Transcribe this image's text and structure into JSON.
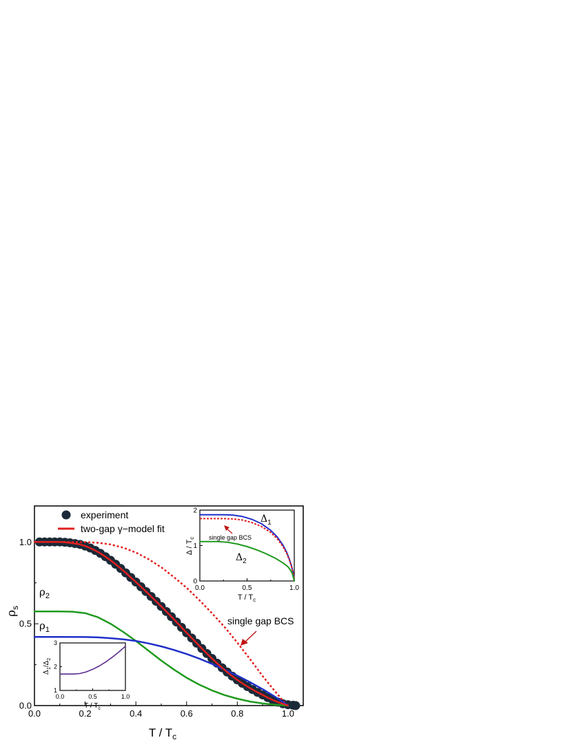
{
  "chart_data": [
    {
      "type": "line",
      "xlabel": "T / T",
      "xlabel_sub": "c",
      "ylabel": "ρ",
      "ylabel_sub": "s",
      "xlim": [
        0.0,
        1.06
      ],
      "ylim": [
        0.0,
        1.22
      ],
      "xticks": [
        "0.0",
        "0.2",
        "0.4",
        "0.6",
        "0.8",
        "1.0"
      ],
      "yticks": [
        "0.0",
        "0.5",
        "1.0"
      ],
      "legend": {
        "placement": "top-left",
        "items": [
          "experiment",
          "two-gap γ−model fit"
        ]
      },
      "series": [
        {
          "name": "experiment",
          "style": "markers",
          "color": "#1b2a38",
          "points": [
            [
              0.02,
              1.0
            ],
            [
              0.04,
              1.0
            ],
            [
              0.06,
              1.0
            ],
            [
              0.08,
              1.0
            ],
            [
              0.1,
              1.0
            ],
            [
              0.12,
              0.998
            ],
            [
              0.14,
              0.995
            ],
            [
              0.16,
              0.99
            ],
            [
              0.18,
              0.985
            ],
            [
              0.2,
              0.975
            ],
            [
              0.22,
              0.963
            ],
            [
              0.24,
              0.948
            ],
            [
              0.26,
              0.93
            ],
            [
              0.28,
              0.91
            ],
            [
              0.3,
              0.888
            ],
            [
              0.32,
              0.864
            ],
            [
              0.34,
              0.838
            ],
            [
              0.36,
              0.811
            ],
            [
              0.38,
              0.783
            ],
            [
              0.4,
              0.755
            ],
            [
              0.42,
              0.726
            ],
            [
              0.44,
              0.697
            ],
            [
              0.46,
              0.667
            ],
            [
              0.48,
              0.637
            ],
            [
              0.5,
              0.606
            ],
            [
              0.52,
              0.575
            ],
            [
              0.54,
              0.543
            ],
            [
              0.56,
              0.511
            ],
            [
              0.58,
              0.478
            ],
            [
              0.6,
              0.445
            ],
            [
              0.62,
              0.413
            ],
            [
              0.64,
              0.381
            ],
            [
              0.66,
              0.349
            ],
            [
              0.68,
              0.318
            ],
            [
              0.7,
              0.288
            ],
            [
              0.72,
              0.259
            ],
            [
              0.74,
              0.231
            ],
            [
              0.76,
              0.205
            ],
            [
              0.78,
              0.18
            ],
            [
              0.8,
              0.157
            ],
            [
              0.82,
              0.136
            ],
            [
              0.84,
              0.116
            ],
            [
              0.86,
              0.098
            ],
            [
              0.88,
              0.081
            ],
            [
              0.9,
              0.065
            ],
            [
              0.92,
              0.049
            ],
            [
              0.94,
              0.034
            ],
            [
              0.96,
              0.021
            ],
            [
              0.98,
              0.011
            ],
            [
              1.0,
              0.005
            ],
            [
              1.02,
              0.002
            ],
            [
              1.03,
              0.0
            ]
          ]
        },
        {
          "name": "two-gap γ−model fit",
          "style": "solid",
          "color": "#e21f1f",
          "points": [
            [
              0.0,
              1.0
            ],
            [
              0.05,
              1.0
            ],
            [
              0.1,
              1.0
            ],
            [
              0.12,
              0.998
            ],
            [
              0.14,
              0.995
            ],
            [
              0.16,
              0.99
            ],
            [
              0.18,
              0.985
            ],
            [
              0.2,
              0.975
            ],
            [
              0.22,
              0.963
            ],
            [
              0.24,
              0.948
            ],
            [
              0.26,
              0.93
            ],
            [
              0.28,
              0.91
            ],
            [
              0.3,
              0.888
            ],
            [
              0.32,
              0.864
            ],
            [
              0.34,
              0.838
            ],
            [
              0.36,
              0.811
            ],
            [
              0.38,
              0.783
            ],
            [
              0.4,
              0.755
            ],
            [
              0.42,
              0.726
            ],
            [
              0.44,
              0.697
            ],
            [
              0.46,
              0.667
            ],
            [
              0.48,
              0.637
            ],
            [
              0.5,
              0.606
            ],
            [
              0.52,
              0.575
            ],
            [
              0.54,
              0.543
            ],
            [
              0.56,
              0.511
            ],
            [
              0.58,
              0.478
            ],
            [
              0.6,
              0.445
            ],
            [
              0.62,
              0.413
            ],
            [
              0.64,
              0.381
            ],
            [
              0.66,
              0.349
            ],
            [
              0.68,
              0.318
            ],
            [
              0.7,
              0.288
            ],
            [
              0.72,
              0.259
            ],
            [
              0.74,
              0.231
            ],
            [
              0.76,
              0.205
            ],
            [
              0.78,
              0.18
            ],
            [
              0.8,
              0.157
            ],
            [
              0.82,
              0.136
            ],
            [
              0.84,
              0.116
            ],
            [
              0.86,
              0.098
            ],
            [
              0.88,
              0.081
            ],
            [
              0.9,
              0.065
            ],
            [
              0.92,
              0.049
            ],
            [
              0.94,
              0.034
            ],
            [
              0.96,
              0.021
            ],
            [
              0.98,
              0.011
            ],
            [
              1.0,
              0.0
            ]
          ]
        },
        {
          "name": "single gap BCS",
          "style": "dotted",
          "color": "#e21f1f",
          "points": [
            [
              0.0,
              1.0
            ],
            [
              0.2,
              0.999
            ],
            [
              0.25,
              0.995
            ],
            [
              0.3,
              0.985
            ],
            [
              0.35,
              0.965
            ],
            [
              0.4,
              0.935
            ],
            [
              0.45,
              0.895
            ],
            [
              0.5,
              0.845
            ],
            [
              0.55,
              0.785
            ],
            [
              0.6,
              0.72
            ],
            [
              0.65,
              0.645
            ],
            [
              0.7,
              0.565
            ],
            [
              0.75,
              0.48
            ],
            [
              0.8,
              0.385
            ],
            [
              0.85,
              0.285
            ],
            [
              0.9,
              0.18
            ],
            [
              0.95,
              0.085
            ],
            [
              0.98,
              0.03
            ],
            [
              1.0,
              0.0
            ]
          ]
        },
        {
          "name": "ρ2",
          "style": "solid",
          "color": "#1f9a1f",
          "points": [
            [
              0.0,
              0.575
            ],
            [
              0.05,
              0.575
            ],
            [
              0.1,
              0.575
            ],
            [
              0.15,
              0.574
            ],
            [
              0.2,
              0.565
            ],
            [
              0.25,
              0.54
            ],
            [
              0.3,
              0.5
            ],
            [
              0.35,
              0.45
            ],
            [
              0.4,
              0.395
            ],
            [
              0.45,
              0.335
            ],
            [
              0.5,
              0.275
            ],
            [
              0.55,
              0.22
            ],
            [
              0.6,
              0.17
            ],
            [
              0.65,
              0.128
            ],
            [
              0.7,
              0.093
            ],
            [
              0.75,
              0.064
            ],
            [
              0.8,
              0.042
            ],
            [
              0.85,
              0.025
            ],
            [
              0.9,
              0.013
            ],
            [
              0.95,
              0.005
            ],
            [
              1.0,
              0.0
            ]
          ]
        },
        {
          "name": "ρ1",
          "style": "solid",
          "color": "#1f2fc8",
          "points": [
            [
              0.0,
              0.42
            ],
            [
              0.1,
              0.42
            ],
            [
              0.2,
              0.419
            ],
            [
              0.25,
              0.417
            ],
            [
              0.3,
              0.412
            ],
            [
              0.35,
              0.405
            ],
            [
              0.4,
              0.395
            ],
            [
              0.45,
              0.38
            ],
            [
              0.5,
              0.362
            ],
            [
              0.55,
              0.34
            ],
            [
              0.6,
              0.315
            ],
            [
              0.65,
              0.287
            ],
            [
              0.7,
              0.255
            ],
            [
              0.75,
              0.22
            ],
            [
              0.8,
              0.183
            ],
            [
              0.85,
              0.143
            ],
            [
              0.9,
              0.1
            ],
            [
              0.95,
              0.053
            ],
            [
              0.98,
              0.022
            ],
            [
              1.0,
              0.0
            ]
          ]
        }
      ],
      "annotations": {
        "rho2": "ρ",
        "rho2_sub": "2",
        "rho1": "ρ",
        "rho1_sub": "1",
        "bcs": "single gap BCS"
      }
    },
    {
      "type": "line",
      "inset": "top-right",
      "xlabel": "T / T",
      "xlabel_sub": "c",
      "ylabel": "Δ / T",
      "ylabel_sub": "c",
      "xlim": [
        0.0,
        1.0
      ],
      "ylim": [
        0.0,
        2.0
      ],
      "xticks": [
        "0.0",
        "0.5",
        "1.0"
      ],
      "yticks": [
        "0",
        "1",
        "2"
      ],
      "series": [
        {
          "name": "Δ1",
          "style": "solid",
          "color": "#1f2fc8",
          "points": [
            [
              0.0,
              1.87
            ],
            [
              0.25,
              1.87
            ],
            [
              0.35,
              1.86
            ],
            [
              0.45,
              1.82
            ],
            [
              0.55,
              1.74
            ],
            [
              0.65,
              1.62
            ],
            [
              0.75,
              1.43
            ],
            [
              0.82,
              1.24
            ],
            [
              0.88,
              1.01
            ],
            [
              0.92,
              0.81
            ],
            [
              0.95,
              0.6
            ],
            [
              0.97,
              0.43
            ],
            [
              0.99,
              0.22
            ],
            [
              1.0,
              0.0
            ]
          ]
        },
        {
          "name": "single gap BCS",
          "style": "dotted",
          "color": "#e21f1f",
          "points": [
            [
              0.0,
              1.76
            ],
            [
              0.25,
              1.76
            ],
            [
              0.35,
              1.75
            ],
            [
              0.45,
              1.72
            ],
            [
              0.55,
              1.65
            ],
            [
              0.65,
              1.54
            ],
            [
              0.75,
              1.37
            ],
            [
              0.82,
              1.19
            ],
            [
              0.88,
              0.97
            ],
            [
              0.92,
              0.78
            ],
            [
              0.95,
              0.58
            ],
            [
              0.97,
              0.42
            ],
            [
              0.99,
              0.21
            ],
            [
              1.0,
              0.0
            ]
          ]
        },
        {
          "name": "Δ2",
          "style": "solid",
          "color": "#1f9a1f",
          "points": [
            [
              0.0,
              1.11
            ],
            [
              0.2,
              1.11
            ],
            [
              0.3,
              1.09
            ],
            [
              0.4,
              1.04
            ],
            [
              0.5,
              0.97
            ],
            [
              0.6,
              0.88
            ],
            [
              0.7,
              0.77
            ],
            [
              0.8,
              0.64
            ],
            [
              0.88,
              0.51
            ],
            [
              0.93,
              0.41
            ],
            [
              0.96,
              0.31
            ],
            [
              0.98,
              0.2
            ],
            [
              1.0,
              0.0
            ]
          ]
        }
      ],
      "annotations": {
        "delta1": "Δ",
        "delta1_sub": "1",
        "delta2": "Δ",
        "delta2_sub": "2",
        "bcs": "single gap BCS"
      }
    },
    {
      "type": "line",
      "inset": "bottom-left",
      "xlabel": "T / T",
      "xlabel_sub": "c",
      "ylabel": "Δ",
      "ylabel_sub1": "1",
      "ylabel_mid": "/Δ",
      "ylabel_sub2": "2",
      "xlim": [
        0.0,
        1.0
      ],
      "ylim": [
        1.0,
        3.0
      ],
      "xticks": [
        "0.0",
        "0.5",
        "1.0"
      ],
      "yticks": [
        "1",
        "2",
        "3"
      ],
      "series": [
        {
          "name": "Δ1/Δ2",
          "style": "solid",
          "color": "#5a2a8e",
          "points": [
            [
              0.0,
              1.69
            ],
            [
              0.2,
              1.69
            ],
            [
              0.3,
              1.71
            ],
            [
              0.4,
              1.78
            ],
            [
              0.5,
              1.89
            ],
            [
              0.6,
              2.03
            ],
            [
              0.7,
              2.2
            ],
            [
              0.8,
              2.4
            ],
            [
              0.9,
              2.62
            ],
            [
              1.0,
              2.86
            ]
          ]
        }
      ]
    }
  ]
}
